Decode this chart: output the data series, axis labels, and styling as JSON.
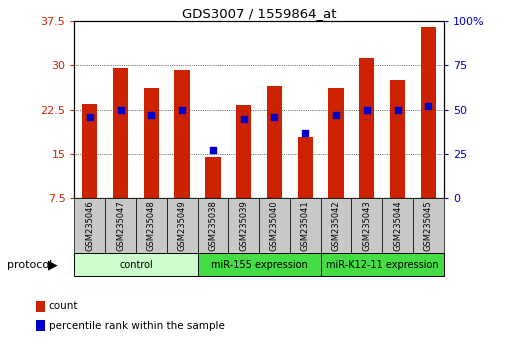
{
  "title": "GDS3007 / 1559864_at",
  "samples": [
    "GSM235046",
    "GSM235047",
    "GSM235048",
    "GSM235049",
    "GSM235038",
    "GSM235039",
    "GSM235040",
    "GSM235041",
    "GSM235042",
    "GSM235043",
    "GSM235044",
    "GSM235045"
  ],
  "counts": [
    23.5,
    29.5,
    26.2,
    29.2,
    14.5,
    23.3,
    26.5,
    17.8,
    26.2,
    31.2,
    27.5,
    36.5
  ],
  "percentile_ranks": [
    46,
    50,
    47,
    50,
    27,
    45,
    46,
    37,
    47,
    50,
    50,
    52
  ],
  "groups": [
    {
      "label": "control",
      "start": 0,
      "end": 4,
      "color": "#ccffcc"
    },
    {
      "label": "miR-155 expression",
      "start": 4,
      "end": 8,
      "color": "#55ee55"
    },
    {
      "label": "miR-K12-11 expression",
      "start": 8,
      "end": 12,
      "color": "#55ee55"
    }
  ],
  "bar_color": "#cc2200",
  "dot_color": "#0000cc",
  "ylim": [
    7.5,
    37.5
  ],
  "yticks": [
    7.5,
    15.0,
    22.5,
    30.0,
    37.5
  ],
  "yticklabels": [
    "7.5",
    "15",
    "22.5",
    "30",
    "37.5"
  ],
  "y2lim": [
    0,
    100
  ],
  "y2ticks": [
    0,
    25,
    50,
    75,
    100
  ],
  "y2ticklabels": [
    "0",
    "25",
    "50",
    "75",
    "100%"
  ],
  "legend_count": "count",
  "legend_percentile": "percentile rank within the sample",
  "protocol_label": "protocol",
  "bg_plot": "#ffffff",
  "tick_color_left": "#cc2200",
  "tick_color_right": "#0000cc",
  "bar_width": 0.5
}
